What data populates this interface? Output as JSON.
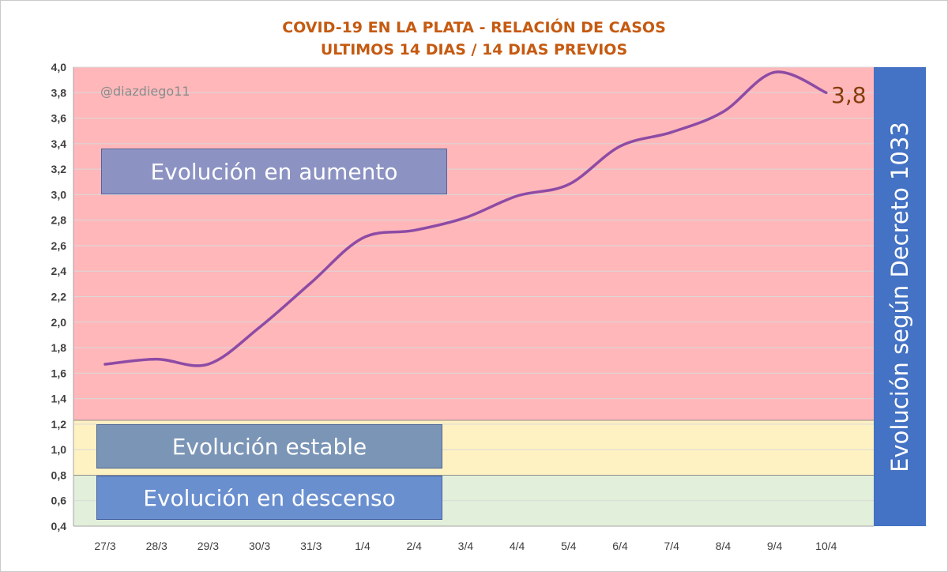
{
  "chart_data": {
    "type": "line",
    "title": "COVID-19 EN LA PLATA - RELACIÓN DE CASOS",
    "subtitle": "ULTIMOS 14 DIAS / 14 DIAS PREVIOS",
    "xlabel": "",
    "ylabel": "",
    "ylim": [
      0.4,
      4.0
    ],
    "grid": true,
    "y_ticks": [
      "4,0",
      "3,8",
      "3,6",
      "3,4",
      "3,2",
      "3,0",
      "2,8",
      "2,6",
      "2,4",
      "2,2",
      "2,0",
      "1,8",
      "1,6",
      "1,4",
      "1,2",
      "1,0",
      "0,8",
      "0,6",
      "0,4"
    ],
    "categories": [
      "27/3",
      "28/3",
      "29/3",
      "30/3",
      "31/3",
      "1/4",
      "2/4",
      "3/4",
      "4/4",
      "5/4",
      "6/4",
      "7/4",
      "8/4",
      "9/4",
      "10/4"
    ],
    "series": [
      {
        "values": [
          1.67,
          1.71,
          1.67,
          1.96,
          2.31,
          2.66,
          2.72,
          2.82,
          2.99,
          3.08,
          3.38,
          3.49,
          3.65,
          3.96,
          3.8
        ],
        "color": "#7030a0"
      }
    ],
    "zones": [
      {
        "label": "Evolución en aumento",
        "from": 1.23,
        "to": 4.0,
        "color": "#ffb7b9"
      },
      {
        "label": "Evolución estable",
        "from": 0.8,
        "to": 1.23,
        "color": "#fff2c2"
      },
      {
        "label": "Evolución en descenso",
        "from": 0.4,
        "to": 0.8,
        "color": "#e2efda"
      }
    ],
    "last_value_label": "3,8",
    "watermark": "@diazdiego11",
    "side_banner": "Evolución según Decreto 1033",
    "box_color": "#4a5fa5",
    "banner_color": "#4472c4"
  }
}
